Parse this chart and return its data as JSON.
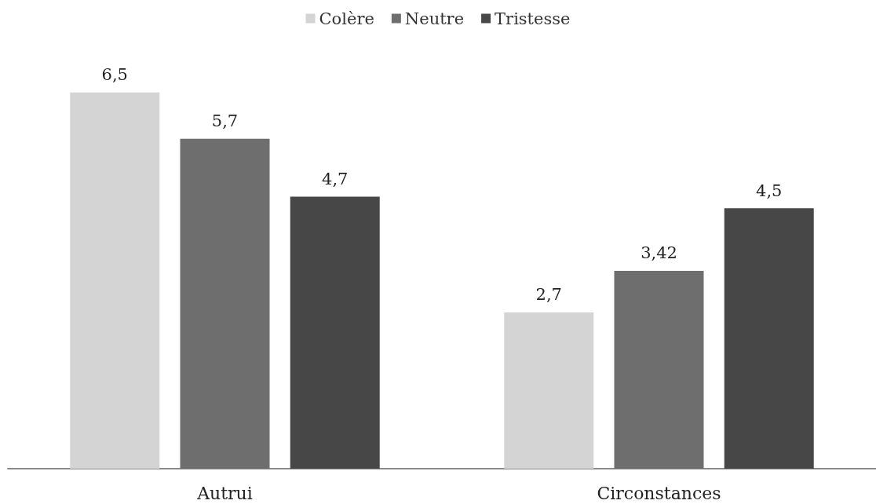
{
  "chart_data": {
    "type": "bar",
    "categories": [
      "Autrui",
      "Circonstances"
    ],
    "series": [
      {
        "name": "Colère",
        "color": "#d4d4d4",
        "values": [
          6.5,
          2.7
        ],
        "value_labels": [
          "6,5",
          "2,7"
        ]
      },
      {
        "name": "Neutre",
        "color": "#6e6e6e",
        "values": [
          5.7,
          3.42
        ],
        "value_labels": [
          "5,7",
          "3,42"
        ]
      },
      {
        "name": "Tristesse",
        "color": "#474747",
        "values": [
          4.7,
          4.5
        ],
        "value_labels": [
          "4,7",
          "4,5"
        ]
      }
    ],
    "tick_labels": "x",
    "legend": "top",
    "grid": false
  }
}
